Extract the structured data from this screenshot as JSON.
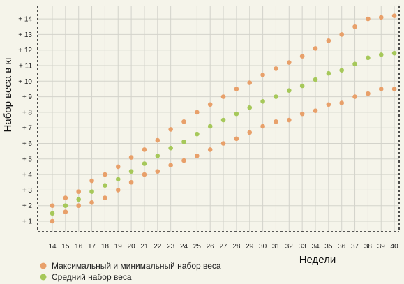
{
  "chart_data": {
    "type": "scatter",
    "title": "",
    "xlabel": "Недели",
    "ylabel": "Набор веса в кг",
    "x": [
      14,
      15,
      16,
      17,
      18,
      19,
      20,
      21,
      22,
      23,
      24,
      25,
      26,
      27,
      28,
      29,
      30,
      31,
      32,
      33,
      34,
      35,
      36,
      37,
      38,
      39,
      40
    ],
    "xlim": [
      14,
      40
    ],
    "ylim": [
      0.5,
      14.2
    ],
    "x_ticks": [
      "14",
      "15",
      "16",
      "17",
      "18",
      "19",
      "20",
      "21",
      "22",
      "23",
      "24",
      "25",
      "26",
      "27",
      "28",
      "29",
      "30",
      "31",
      "32",
      "33",
      "34",
      "35",
      "36",
      "37",
      "38",
      "39",
      "40"
    ],
    "y_ticks": [
      {
        "value": 1,
        "label": "+ 1"
      },
      {
        "value": 2,
        "label": "+ 2"
      },
      {
        "value": 3,
        "label": "+ 3"
      },
      {
        "value": 4,
        "label": "+ 4"
      },
      {
        "value": 5,
        "label": "+ 5"
      },
      {
        "value": 6,
        "label": "+ 6"
      },
      {
        "value": 7,
        "label": "+ 7"
      },
      {
        "value": 8,
        "label": "+ 8"
      },
      {
        "value": 9,
        "label": "+ 9"
      },
      {
        "value": 10,
        "label": "+ 10"
      },
      {
        "value": 11,
        "label": "+ 11"
      },
      {
        "value": 12,
        "label": "+ 12"
      },
      {
        "value": 13,
        "label": "+ 13"
      },
      {
        "value": 14,
        "label": "+ 14"
      }
    ],
    "grid": true,
    "legend_position": "bottom-left",
    "series": [
      {
        "name": "Максимальный и минимальный набор веса",
        "color": "#e8a06a",
        "role": "max",
        "values": [
          2.0,
          2.5,
          2.9,
          3.6,
          4.0,
          4.5,
          5.1,
          5.6,
          6.2,
          6.9,
          7.4,
          8.0,
          8.5,
          9.0,
          9.5,
          9.9,
          10.4,
          10.8,
          11.2,
          11.6,
          12.1,
          12.6,
          13.0,
          13.5,
          14.0,
          14.1,
          14.2
        ]
      },
      {
        "name": "Средний набор веса",
        "color": "#a6c85a",
        "role": "avg",
        "values": [
          1.5,
          2.0,
          2.4,
          2.9,
          3.3,
          3.7,
          4.2,
          4.7,
          5.2,
          5.7,
          6.1,
          6.6,
          7.1,
          7.5,
          7.9,
          8.3,
          8.7,
          9.0,
          9.4,
          9.7,
          10.1,
          10.5,
          10.7,
          11.1,
          11.5,
          11.7,
          11.8
        ]
      },
      {
        "name": "Максимальный и минимальный набор веса",
        "color": "#e8a06a",
        "role": "min",
        "values": [
          1.0,
          1.6,
          2.0,
          2.2,
          2.5,
          3.0,
          3.5,
          4.0,
          4.2,
          4.6,
          4.9,
          5.2,
          5.6,
          6.0,
          6.3,
          6.7,
          7.1,
          7.4,
          7.5,
          7.9,
          8.1,
          8.5,
          8.6,
          9.0,
          9.2,
          9.5,
          9.5
        ]
      }
    ],
    "legend": [
      {
        "label": "Максимальный и минимальный набор веса",
        "color": "#e8a06a"
      },
      {
        "label": "Средний набор веса",
        "color": "#a6c85a"
      }
    ]
  }
}
